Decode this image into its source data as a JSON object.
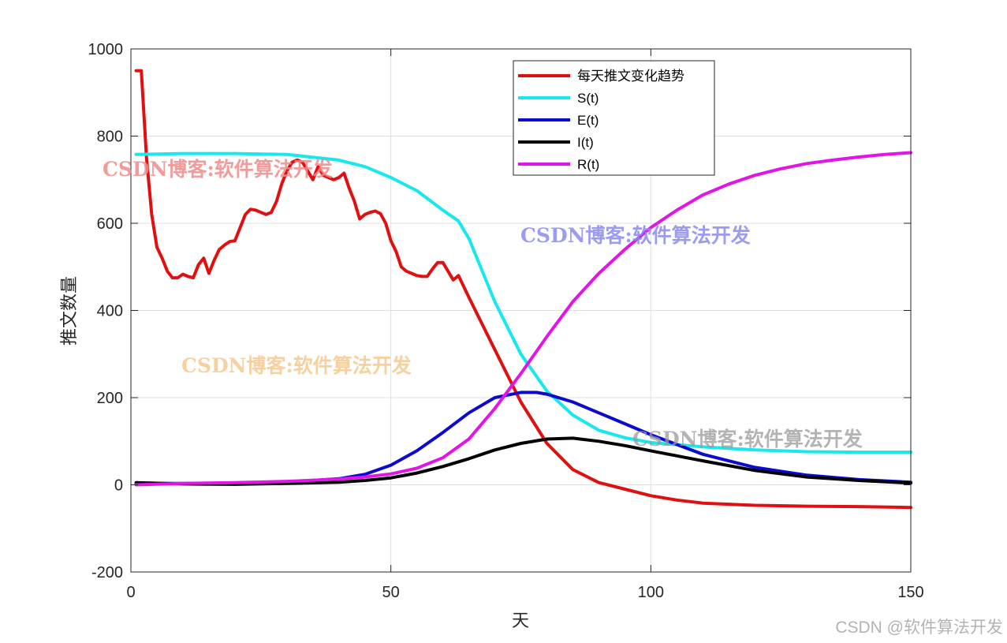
{
  "chart_data": {
    "type": "line",
    "title": "",
    "xlabel": "天",
    "ylabel": "推文数量",
    "xlim": [
      0,
      150
    ],
    "ylim": [
      -200,
      1000
    ],
    "xticks": [
      0,
      50,
      100,
      150
    ],
    "yticks": [
      -200,
      0,
      200,
      400,
      600,
      800,
      1000
    ],
    "grid": true,
    "legend_position": "top-center",
    "series": [
      {
        "name": "每天推文变化趋势",
        "color": "#e01010",
        "x": [
          1,
          2,
          3,
          4,
          5,
          6,
          7,
          8,
          9,
          10,
          11,
          12,
          13,
          14,
          15,
          16,
          17,
          18,
          19,
          20,
          21,
          22,
          23,
          24,
          25,
          26,
          27,
          28,
          29,
          30,
          31,
          32,
          33,
          34,
          35,
          36,
          37,
          38,
          39,
          40,
          41,
          42,
          43,
          44,
          45,
          46,
          47,
          48,
          49,
          50,
          51,
          52,
          53,
          54,
          55,
          56,
          57,
          58,
          59,
          60,
          61,
          62,
          63,
          65,
          70,
          75,
          80,
          85,
          90,
          95,
          100,
          105,
          110,
          120,
          130,
          140,
          150
        ],
        "y": [
          950,
          950,
          750,
          620,
          545,
          520,
          490,
          475,
          475,
          483,
          478,
          475,
          505,
          520,
          485,
          515,
          540,
          550,
          558,
          560,
          590,
          620,
          632,
          630,
          625,
          620,
          625,
          650,
          690,
          720,
          740,
          745,
          740,
          720,
          700,
          730,
          710,
          705,
          700,
          705,
          715,
          680,
          650,
          610,
          620,
          625,
          628,
          622,
          600,
          560,
          535,
          500,
          490,
          485,
          480,
          478,
          478,
          495,
          510,
          510,
          490,
          470,
          480,
          430,
          310,
          190,
          95,
          35,
          5,
          -10,
          -25,
          -35,
          -42,
          -47,
          -49,
          -50,
          -52
        ]
      },
      {
        "name": "S(t)",
        "color": "#16e8ee",
        "x": [
          1,
          10,
          20,
          30,
          40,
          45,
          50,
          55,
          60,
          63,
          65,
          70,
          75,
          80,
          85,
          90,
          95,
          100,
          110,
          120,
          130,
          140,
          150
        ],
        "y": [
          758,
          760,
          760,
          758,
          745,
          730,
          705,
          675,
          630,
          605,
          565,
          420,
          300,
          215,
          160,
          125,
          108,
          97,
          87,
          80,
          76,
          75,
          75
        ]
      },
      {
        "name": "E(t)",
        "color": "#0a0ad0",
        "x": [
          1,
          10,
          20,
          30,
          40,
          45,
          50,
          55,
          60,
          65,
          70,
          75,
          78,
          80,
          85,
          90,
          95,
          100,
          110,
          120,
          130,
          140,
          150
        ],
        "y": [
          3,
          3,
          4,
          6,
          14,
          24,
          45,
          78,
          120,
          165,
          200,
          212,
          212,
          208,
          190,
          165,
          140,
          115,
          70,
          40,
          22,
          12,
          6
        ]
      },
      {
        "name": "I(t)",
        "color": "#000000",
        "x": [
          1,
          10,
          20,
          30,
          40,
          45,
          50,
          55,
          60,
          65,
          70,
          75,
          80,
          85,
          90,
          95,
          100,
          110,
          120,
          130,
          140,
          150
        ],
        "y": [
          5,
          2,
          1,
          3,
          6,
          10,
          16,
          27,
          42,
          60,
          80,
          95,
          105,
          107,
          100,
          90,
          78,
          55,
          33,
          18,
          10,
          4
        ]
      },
      {
        "name": "R(t)",
        "color": "#e214e6",
        "x": [
          1,
          10,
          20,
          30,
          40,
          45,
          50,
          55,
          60,
          65,
          70,
          75,
          80,
          85,
          90,
          95,
          100,
          105,
          110,
          115,
          120,
          125,
          130,
          135,
          140,
          145,
          150
        ],
        "y": [
          0,
          3,
          5,
          8,
          13,
          18,
          25,
          38,
          62,
          105,
          175,
          255,
          340,
          420,
          485,
          540,
          590,
          630,
          665,
          690,
          710,
          725,
          737,
          745,
          752,
          758,
          762
        ]
      }
    ],
    "watermarks": [
      "CSDN博客:软件算法开发",
      "CSDN博客:软件算法开发",
      "CSDN博客:软件算法开发",
      "CSDN博客:软件算法开发"
    ],
    "credit": "CSDN @软件算法开发"
  }
}
